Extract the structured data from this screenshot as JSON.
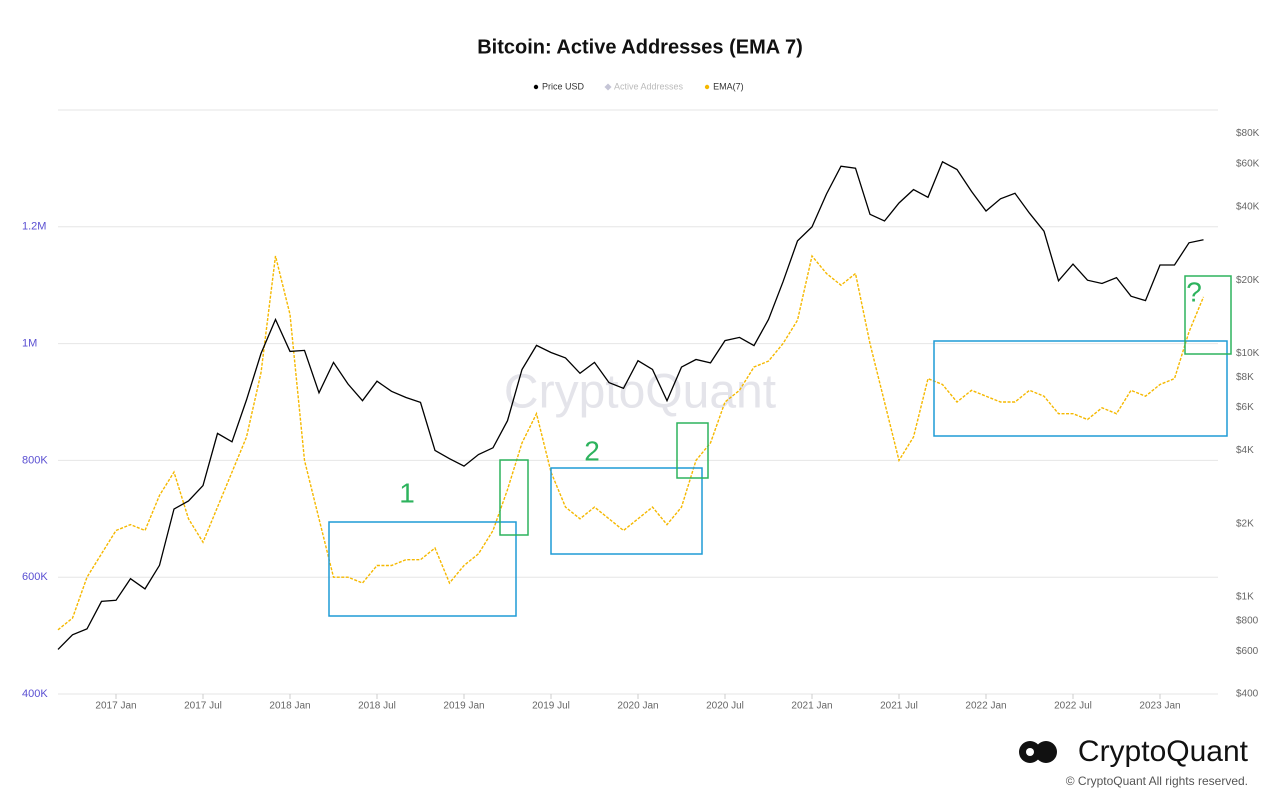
{
  "chart_data": {
    "type": "line",
    "title": "Bitcoin: Active Addresses (EMA 7)",
    "x": [
      "2016-09",
      "2016-10",
      "2016-11",
      "2016-12",
      "2017-01",
      "2017-02",
      "2017-03",
      "2017-04",
      "2017-05",
      "2017-06",
      "2017-07",
      "2017-08",
      "2017-09",
      "2017-10",
      "2017-11",
      "2017-12",
      "2018-01",
      "2018-02",
      "2018-03",
      "2018-04",
      "2018-05",
      "2018-06",
      "2018-07",
      "2018-08",
      "2018-09",
      "2018-10",
      "2018-11",
      "2018-12",
      "2019-01",
      "2019-02",
      "2019-03",
      "2019-04",
      "2019-05",
      "2019-06",
      "2019-07",
      "2019-08",
      "2019-09",
      "2019-10",
      "2019-11",
      "2019-12",
      "2020-01",
      "2020-02",
      "2020-03",
      "2020-04",
      "2020-05",
      "2020-06",
      "2020-07",
      "2020-08",
      "2020-09",
      "2020-10",
      "2020-11",
      "2020-12",
      "2021-01",
      "2021-02",
      "2021-03",
      "2021-04",
      "2021-05",
      "2021-06",
      "2021-07",
      "2021-08",
      "2021-09",
      "2021-10",
      "2021-11",
      "2021-12",
      "2022-01",
      "2022-02",
      "2022-03",
      "2022-04",
      "2022-05",
      "2022-06",
      "2022-07",
      "2022-08",
      "2022-09",
      "2022-10",
      "2022-11",
      "2022-12",
      "2023-01",
      "2023-02",
      "2023-03",
      "2023-04"
    ],
    "series": [
      {
        "name": "Price USD",
        "color": "#000000",
        "axis": "y2",
        "values": [
          610,
          700,
          740,
          960,
          970,
          1190,
          1080,
          1350,
          2300,
          2480,
          2870,
          4700,
          4340,
          6450,
          10000,
          13800,
          10200,
          10300,
          6900,
          9200,
          7500,
          6400,
          7700,
          7000,
          6600,
          6300,
          4000,
          3700,
          3450,
          3850,
          4100,
          5300,
          8600,
          10800,
          10100,
          9600,
          8300,
          9200,
          7600,
          7200,
          9350,
          8600,
          6400,
          8800,
          9450,
          9150,
          11300,
          11650,
          10780,
          13800,
          19700,
          29000,
          33100,
          45200,
          58800,
          57700,
          37300,
          35000,
          41500,
          47100,
          43800,
          61300,
          57000,
          46300,
          38500,
          43200,
          45500,
          37700,
          31800,
          19900,
          23300,
          20000,
          19400,
          20500,
          17200,
          16500,
          23100,
          23100,
          28500,
          29300
        ]
      },
      {
        "name": "Active Addresses",
        "color": "#c5c5d6",
        "visible": false
      },
      {
        "name": "EMA(7)",
        "color": "#f5b800",
        "values": [
          510000,
          530000,
          600000,
          640000,
          680000,
          690000,
          680000,
          740000,
          780000,
          700000,
          660000,
          720000,
          780000,
          840000,
          950000,
          1150000,
          1050000,
          800000,
          700000,
          600000,
          600000,
          590000,
          620000,
          620000,
          630000,
          630000,
          650000,
          590000,
          620000,
          640000,
          680000,
          750000,
          830000,
          880000,
          780000,
          720000,
          700000,
          720000,
          700000,
          680000,
          700000,
          720000,
          690000,
          720000,
          800000,
          830000,
          900000,
          920000,
          960000,
          970000,
          1000000,
          1040000,
          1150000,
          1120000,
          1100000,
          1120000,
          1000000,
          900000,
          800000,
          840000,
          940000,
          930000,
          900000,
          920000,
          910000,
          900000,
          900000,
          920000,
          910000,
          880000,
          880000,
          870000,
          890000,
          880000,
          920000,
          910000,
          930000,
          940000,
          1020000,
          1080000
        ]
      }
    ],
    "xlim": [
      "2016-09",
      "2023-05"
    ],
    "xticks": [
      {
        "value": "2017-01",
        "label": "2017 Jan"
      },
      {
        "value": "2017-07",
        "label": "2017 Jul"
      },
      {
        "value": "2018-01",
        "label": "2018 Jan"
      },
      {
        "value": "2018-07",
        "label": "2018 Jul"
      },
      {
        "value": "2019-01",
        "label": "2019 Jan"
      },
      {
        "value": "2019-07",
        "label": "2019 Jul"
      },
      {
        "value": "2020-01",
        "label": "2020 Jan"
      },
      {
        "value": "2020-07",
        "label": "2020 Jul"
      },
      {
        "value": "2021-01",
        "label": "2021 Jan"
      },
      {
        "value": "2021-07",
        "label": "2021 Jul"
      },
      {
        "value": "2022-01",
        "label": "2022 Jan"
      },
      {
        "value": "2022-07",
        "label": "2022 Jul"
      },
      {
        "value": "2023-01",
        "label": "2023 Jan"
      }
    ],
    "ylim": [
      400000,
      1400000
    ],
    "yticks": [
      {
        "value": 400000,
        "label": "400K"
      },
      {
        "value": 600000,
        "label": "600K"
      },
      {
        "value": 800000,
        "label": "800K"
      },
      {
        "value": 1000000,
        "label": "1M"
      },
      {
        "value": 1200000,
        "label": "1.2M"
      }
    ],
    "y2lim": [
      400,
      100000
    ],
    "y2scale": "log",
    "y2ticks": [
      {
        "value": 400,
        "label": "$400"
      },
      {
        "value": 600,
        "label": "$600"
      },
      {
        "value": 800,
        "label": "$800"
      },
      {
        "value": 1000,
        "label": "$1K"
      },
      {
        "value": 2000,
        "label": "$2K"
      },
      {
        "value": 4000,
        "label": "$4K"
      },
      {
        "value": 6000,
        "label": "$6K"
      },
      {
        "value": 8000,
        "label": "$8K"
      },
      {
        "value": 10000,
        "label": "$10K"
      },
      {
        "value": 20000,
        "label": "$20K"
      },
      {
        "value": 40000,
        "label": "$40K"
      },
      {
        "value": 60000,
        "label": "$60K"
      },
      {
        "value": 80000,
        "label": "$80K"
      }
    ],
    "grid": true,
    "legend": "top",
    "annotations": [
      "1",
      "2",
      "?"
    ],
    "watermark": "CryptoQuant",
    "brand": "CryptoQuant",
    "copyright": "© CryptoQuant All rights reserved."
  }
}
